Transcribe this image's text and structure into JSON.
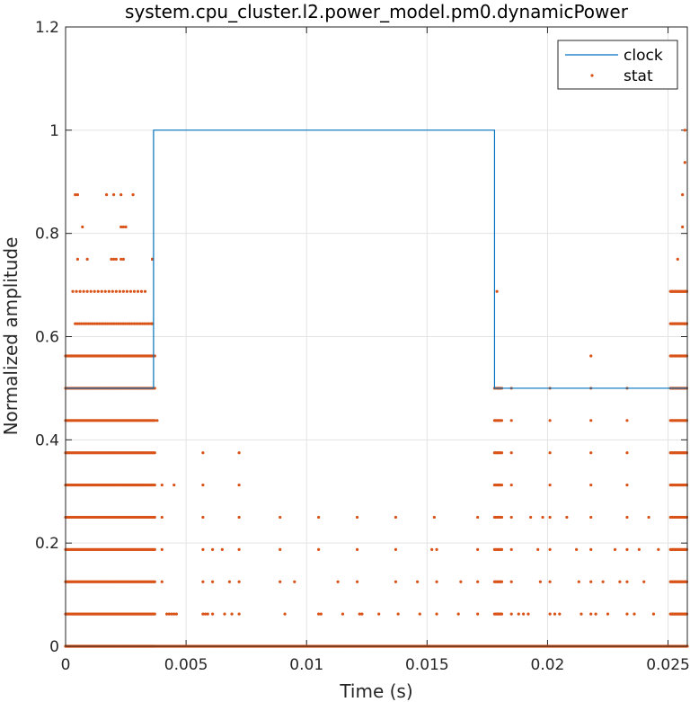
{
  "chart_data": {
    "type": "line",
    "title": "system.cpu_cluster.l2.power_model.pm0.dynamicPower",
    "xlabel": "Time (s)",
    "ylabel": "Normalized amplitude",
    "xlim": [
      0,
      0.0258
    ],
    "ylim": [
      0,
      1.2
    ],
    "xticks": [
      0,
      0.005,
      0.01,
      0.015,
      0.02,
      0.025
    ],
    "xtick_labels": [
      "0",
      "0.005",
      "0.01",
      "0.015",
      "0.02",
      "0.025"
    ],
    "yticks": [
      0,
      0.2,
      0.4,
      0.6,
      0.8,
      1,
      1.2
    ],
    "ytick_labels": [
      "0",
      "0.2",
      "0.4",
      "0.6",
      "0.8",
      "1",
      "1.2"
    ],
    "grid": true,
    "legend_position": "top-right",
    "colors": {
      "clock": "#0072BD",
      "stat": "#D95319"
    },
    "series": [
      {
        "name": "clock",
        "kind": "line",
        "x": [
          0,
          0.00365,
          0.00365,
          0.0178,
          0.0178,
          0.0258
        ],
        "y": [
          0.5,
          0.5,
          1.0,
          1.0,
          0.5,
          0.5
        ]
      },
      {
        "name": "stat",
        "kind": "scatter",
        "dense_bands": [
          {
            "x_start": 0.0,
            "x_end": 0.0037,
            "levels": [
              0,
              0.0625,
              0.125,
              0.1875,
              0.25,
              0.3125,
              0.375,
              0.4375,
              0.5,
              0.5625
            ],
            "step": 5e-05
          },
          {
            "x_start": 0.0004,
            "x_end": 0.0036,
            "levels": [
              0.625
            ],
            "step": 9e-05
          },
          {
            "x_start": 0.0003,
            "x_end": 0.0034,
            "levels": [
              0.6875
            ],
            "step": 0.00015
          },
          {
            "x_start": 0.0,
            "x_end": 0.0258,
            "levels": [
              0
            ],
            "step": 4e-05
          },
          {
            "x_start": 0.0178,
            "x_end": 0.0181,
            "levels": [
              0.0625,
              0.125,
              0.1875,
              0.25,
              0.3125,
              0.375,
              0.4375,
              0.5
            ],
            "step": 5e-05
          },
          {
            "x_start": 0.0251,
            "x_end": 0.0258,
            "levels": [
              0.0625,
              0.125,
              0.1875,
              0.25,
              0.3125,
              0.375,
              0.4375,
              0.5,
              0.5625,
              0.625,
              0.6875
            ],
            "step": 4e-05
          }
        ],
        "points": [
          [
            0.0036,
            0.75
          ],
          [
            0.0036,
            0.625
          ],
          [
            0.0004,
            0.875
          ],
          [
            0.0005,
            0.875
          ],
          [
            0.0017,
            0.875
          ],
          [
            0.002,
            0.875
          ],
          [
            0.0023,
            0.875
          ],
          [
            0.0028,
            0.875
          ],
          [
            0.0007,
            0.8125
          ],
          [
            0.0023,
            0.8125
          ],
          [
            0.0024,
            0.8125
          ],
          [
            0.0025,
            0.8125
          ],
          [
            0.0005,
            0.75
          ],
          [
            0.0009,
            0.75
          ],
          [
            0.0019,
            0.75
          ],
          [
            0.002,
            0.75
          ],
          [
            0.0021,
            0.75
          ],
          [
            0.0023,
            0.75
          ],
          [
            0.0024,
            0.75
          ],
          [
            0.0036,
            0.75
          ],
          [
            0.0038,
            0.4375
          ],
          [
            0.004,
            0.3125
          ],
          [
            0.0045,
            0.3125
          ],
          [
            0.0042,
            0.0625
          ],
          [
            0.0043,
            0.0625
          ],
          [
            0.0044,
            0.0625
          ],
          [
            0.0045,
            0.0625
          ],
          [
            0.0046,
            0.0625
          ],
          [
            0.004,
            0.25
          ],
          [
            0.004,
            0.1875
          ],
          [
            0.004,
            0.125
          ],
          [
            0.0057,
            0.375
          ],
          [
            0.0057,
            0.3125
          ],
          [
            0.0057,
            0.25
          ],
          [
            0.0057,
            0.1875
          ],
          [
            0.0057,
            0.125
          ],
          [
            0.0057,
            0.0625
          ],
          [
            0.0058,
            0.0625
          ],
          [
            0.0059,
            0.0625
          ],
          [
            0.0061,
            0.1875
          ],
          [
            0.0061,
            0.125
          ],
          [
            0.0061,
            0.0625
          ],
          [
            0.0065,
            0.1875
          ],
          [
            0.0066,
            0.0625
          ],
          [
            0.0068,
            0.125
          ],
          [
            0.0069,
            0.0625
          ],
          [
            0.0072,
            0.375
          ],
          [
            0.0072,
            0.3125
          ],
          [
            0.0072,
            0.25
          ],
          [
            0.0072,
            0.1875
          ],
          [
            0.0072,
            0.125
          ],
          [
            0.0072,
            0.0625
          ],
          [
            0.0089,
            0.25
          ],
          [
            0.0089,
            0.1875
          ],
          [
            0.0089,
            0.125
          ],
          [
            0.0091,
            0.0625
          ],
          [
            0.0095,
            0.125
          ],
          [
            0.0105,
            0.25
          ],
          [
            0.0105,
            0.1875
          ],
          [
            0.0105,
            0.0625
          ],
          [
            0.0106,
            0.0625
          ],
          [
            0.0113,
            0.125
          ],
          [
            0.0115,
            0.0625
          ],
          [
            0.0121,
            0.25
          ],
          [
            0.0121,
            0.1875
          ],
          [
            0.0121,
            0.125
          ],
          [
            0.0122,
            0.0625
          ],
          [
            0.0123,
            0.0625
          ],
          [
            0.013,
            0.0625
          ],
          [
            0.0137,
            0.25
          ],
          [
            0.0137,
            0.1875
          ],
          [
            0.0137,
            0.125
          ],
          [
            0.0138,
            0.0625
          ],
          [
            0.0146,
            0.125
          ],
          [
            0.0147,
            0.0625
          ],
          [
            0.0152,
            0.1875
          ],
          [
            0.0153,
            0.25
          ],
          [
            0.0154,
            0.1875
          ],
          [
            0.0154,
            0.125
          ],
          [
            0.0154,
            0.0625
          ],
          [
            0.0163,
            0.0625
          ],
          [
            0.0164,
            0.125
          ],
          [
            0.0171,
            0.25
          ],
          [
            0.0171,
            0.1875
          ],
          [
            0.0171,
            0.125
          ],
          [
            0.0171,
            0.0625
          ],
          [
            0.0179,
            0.6875
          ],
          [
            0.018,
            0.5
          ],
          [
            0.0185,
            0.5
          ],
          [
            0.0185,
            0.4375
          ],
          [
            0.0185,
            0.375
          ],
          [
            0.0185,
            0.3125
          ],
          [
            0.0185,
            0.25
          ],
          [
            0.0185,
            0.1875
          ],
          [
            0.0185,
            0.125
          ],
          [
            0.0185,
            0.0625
          ],
          [
            0.0188,
            0.0625
          ],
          [
            0.019,
            0.0625
          ],
          [
            0.0192,
            0.0625
          ],
          [
            0.0193,
            0.25
          ],
          [
            0.0196,
            0.1875
          ],
          [
            0.0197,
            0.125
          ],
          [
            0.0198,
            0.25
          ],
          [
            0.0201,
            0.5
          ],
          [
            0.0201,
            0.4375
          ],
          [
            0.0201,
            0.375
          ],
          [
            0.0201,
            0.3125
          ],
          [
            0.0201,
            0.25
          ],
          [
            0.0201,
            0.1875
          ],
          [
            0.0201,
            0.125
          ],
          [
            0.0201,
            0.0625
          ],
          [
            0.0203,
            0.0625
          ],
          [
            0.0205,
            0.0625
          ],
          [
            0.0208,
            0.25
          ],
          [
            0.0212,
            0.1875
          ],
          [
            0.0213,
            0.125
          ],
          [
            0.0214,
            0.0625
          ],
          [
            0.0218,
            0.5625
          ],
          [
            0.0218,
            0.5
          ],
          [
            0.0218,
            0.4375
          ],
          [
            0.0218,
            0.375
          ],
          [
            0.0218,
            0.3125
          ],
          [
            0.0218,
            0.25
          ],
          [
            0.0218,
            0.1875
          ],
          [
            0.0218,
            0.125
          ],
          [
            0.0218,
            0.0625
          ],
          [
            0.022,
            0.0625
          ],
          [
            0.0223,
            0.125
          ],
          [
            0.0225,
            0.0625
          ],
          [
            0.0228,
            0.1875
          ],
          [
            0.023,
            0.125
          ],
          [
            0.0233,
            0.5
          ],
          [
            0.0233,
            0.4375
          ],
          [
            0.0233,
            0.375
          ],
          [
            0.0233,
            0.3125
          ],
          [
            0.0233,
            0.25
          ],
          [
            0.0233,
            0.1875
          ],
          [
            0.0233,
            0.125
          ],
          [
            0.0233,
            0.0625
          ],
          [
            0.0236,
            0.0625
          ],
          [
            0.0238,
            0.1875
          ],
          [
            0.024,
            0.125
          ],
          [
            0.0242,
            0.25
          ],
          [
            0.0244,
            0.0625
          ],
          [
            0.0246,
            0.1875
          ],
          [
            0.0254,
            0.75
          ],
          [
            0.0255,
            0.5625
          ],
          [
            0.0256,
            0.8125
          ],
          [
            0.0256,
            0.875
          ],
          [
            0.0257,
            0.9375
          ],
          [
            0.0257,
            1.0
          ],
          [
            0.0257,
            0.625
          ]
        ]
      }
    ]
  }
}
